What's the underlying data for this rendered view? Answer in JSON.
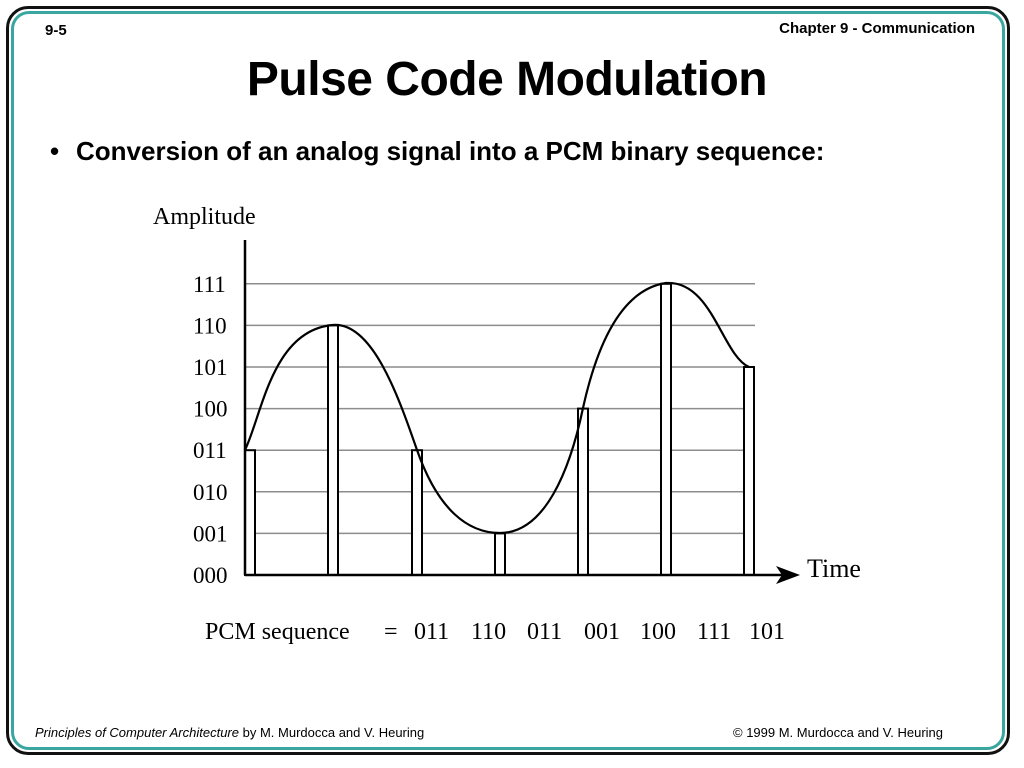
{
  "header": {
    "slide_number": "9-5",
    "chapter": "Chapter 9 - Communication"
  },
  "title": "Pulse Code Modulation",
  "bullet": {
    "symbol": "•",
    "text": "Conversion of an analog signal into a PCM binary sequence:"
  },
  "diagram": {
    "y_axis_label": "Amplitude",
    "x_axis_label": "Time",
    "levels": [
      "000",
      "001",
      "010",
      "011",
      "100",
      "101",
      "110",
      "111"
    ],
    "sample_codes": [
      "011",
      "110",
      "011",
      "001",
      "100",
      "111",
      "101"
    ],
    "pcm_sequence_label": "PCM sequence",
    "pcm_equals": "=",
    "pcm_sequence_values": [
      "011",
      "110",
      "011",
      "001",
      "100",
      "111",
      "101"
    ]
  },
  "footer": {
    "book_title": "Principles of Computer Architecture",
    "book_authors": " by M. Murdocca and V. Heuring",
    "copyright": "© 1999 M. Murdocca and V. Heuring"
  },
  "colors": {
    "frame_outer": "#111111",
    "frame_inner": "#3aa6a0",
    "grid": "#8c8c8c",
    "ink": "#000000"
  }
}
